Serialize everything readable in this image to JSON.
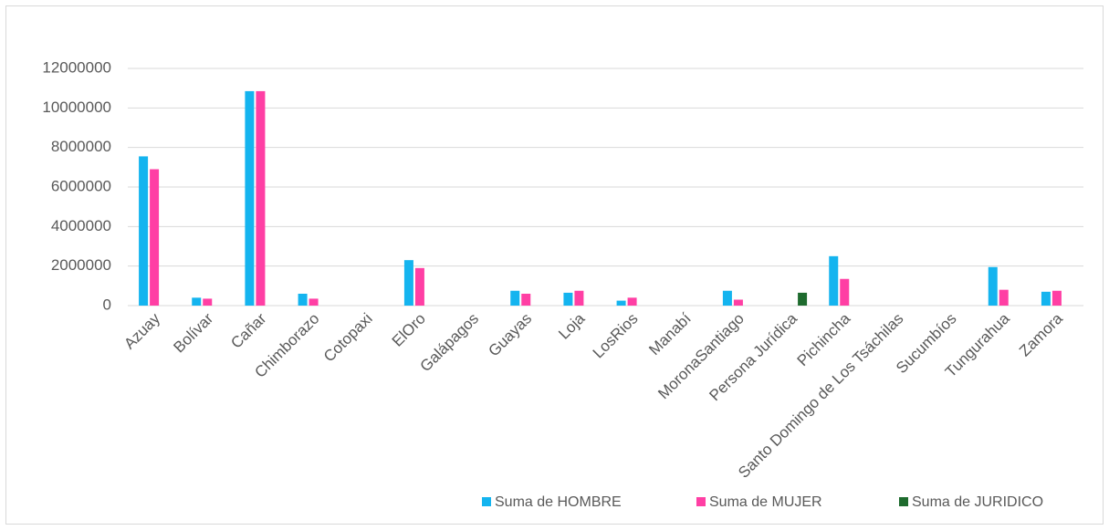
{
  "chart_data": {
    "type": "bar",
    "categories": [
      "Azuay",
      "Bolívar",
      "Cañar",
      "Chimborazo",
      "Cotopaxi",
      "ElOro",
      "Galápagos",
      "Guayas",
      "Loja",
      "LosRios",
      "Manabí",
      "MoronaSantiago",
      "Persona Jurídica",
      "Pichincha",
      "Santo Domingo de Los Tsáchilas",
      "Sucumbíos",
      "Tungurahua",
      "Zamora"
    ],
    "series": [
      {
        "name": "Suma de HOMBRE",
        "color": "#14b4ef",
        "values": [
          7550000,
          400000,
          10850000,
          600000,
          0,
          2300000,
          0,
          750000,
          650000,
          250000,
          0,
          750000,
          0,
          2500000,
          0,
          0,
          1950000,
          700000
        ]
      },
      {
        "name": "Suma de MUJER",
        "color": "#ff3fa4",
        "values": [
          6900000,
          350000,
          10850000,
          350000,
          0,
          1900000,
          0,
          600000,
          750000,
          400000,
          0,
          300000,
          0,
          1350000,
          0,
          0,
          800000,
          750000
        ]
      },
      {
        "name": "Suma de JURIDICO",
        "color": "#1e6b2e",
        "values": [
          0,
          0,
          0,
          0,
          0,
          0,
          0,
          0,
          0,
          0,
          0,
          0,
          650000,
          0,
          0,
          0,
          0,
          0
        ]
      }
    ],
    "ylim": [
      0,
      12000000
    ],
    "yticks": [
      0,
      2000000,
      4000000,
      6000000,
      8000000,
      10000000,
      12000000
    ],
    "grid": true,
    "legend": "bottom-right"
  }
}
